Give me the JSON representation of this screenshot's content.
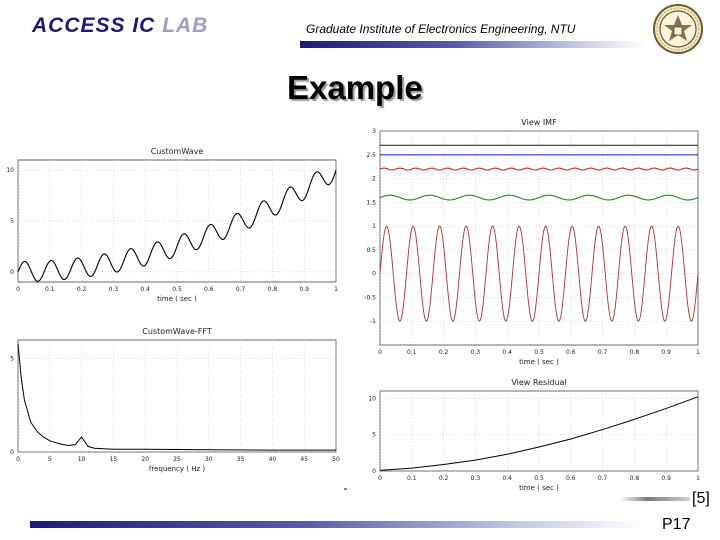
{
  "header": {
    "logo_main": "ACCESS IC ",
    "logo_fade": "LAB",
    "institute": "Graduate Institute of Electronics Engineering, NTU",
    "seal_icon": "ntu-seal-icon"
  },
  "slide": {
    "title": "Example",
    "reference": "[5]",
    "page": "P17"
  },
  "chart_data": [
    {
      "type": "line",
      "title": "CustomWave",
      "xlabel": "time ( sec )",
      "ylabel": "",
      "xlim": [
        0,
        1
      ],
      "ylim": [
        -1,
        11
      ],
      "x_ticks": [
        "0",
        "0.1",
        "0.2",
        "0.3",
        "0.4",
        "0.5",
        "0.6",
        "0.7",
        "0.8",
        "0.9",
        "1"
      ],
      "y_ticks": [
        "0",
        "5",
        "10"
      ],
      "grid": true,
      "series": [
        {
          "description": "x(t)=10t^2 + sin(2*pi*12t)",
          "points_x": [
            0,
            0.1,
            0.2,
            0.3,
            0.4,
            0.5,
            0.6,
            0.7,
            0.8,
            0.9,
            1.0
          ],
          "trend": [
            0,
            0.1,
            0.4,
            0.9,
            1.6,
            2.5,
            3.6,
            4.9,
            6.4,
            8.1,
            10.0
          ],
          "oscillation_freq_hz": 12,
          "oscillation_amp": 1
        }
      ],
      "color": "#000000"
    },
    {
      "type": "line",
      "title": "CustomWave-FFT",
      "xlabel": "frequency ( Hz )",
      "ylabel": "",
      "xlim": [
        0,
        50
      ],
      "ylim": [
        0,
        6
      ],
      "x_ticks": [
        "0",
        "5",
        "10",
        "15",
        "20",
        "25",
        "30",
        "35",
        "40",
        "45",
        "50"
      ],
      "y_ticks": [
        "0",
        "5"
      ],
      "grid": true,
      "series": [
        {
          "x": [
            0,
            0.5,
            1,
            2,
            3,
            4,
            5,
            6,
            7,
            8,
            9,
            10,
            11,
            12,
            15,
            20,
            30,
            40,
            50
          ],
          "y": [
            5.8,
            4.0,
            2.8,
            1.6,
            1.1,
            0.8,
            0.6,
            0.5,
            0.4,
            0.35,
            0.4,
            0.8,
            0.3,
            0.2,
            0.15,
            0.15,
            0.12,
            0.1,
            0.1
          ]
        }
      ],
      "color": "#000000"
    },
    {
      "type": "line",
      "title": "View IMF",
      "xlabel": "time ( sec )",
      "ylabel": "",
      "xlim": [
        0,
        1
      ],
      "ylim": [
        -1.5,
        3
      ],
      "x_ticks": [
        "0",
        "0.1",
        "0.2",
        "0.3",
        "0.4",
        "0.5",
        "0.6",
        "0.7",
        "0.8",
        "0.9",
        "1"
      ],
      "y_ticks": [
        "-1",
        "-0.5",
        "0",
        "0.5",
        "1",
        "1.5",
        "2",
        "2.5",
        "3"
      ],
      "grid": true,
      "series": [
        {
          "offset": 2.7,
          "amplitude": 0,
          "freq_hz": 0,
          "color": "#333333"
        },
        {
          "offset": 2.5,
          "amplitude": 0,
          "freq_hz": 0,
          "color": "#1f3fbf"
        },
        {
          "offset": 2.2,
          "amplitude": 0.02,
          "freq_hz": 20,
          "color": "#cc2222"
        },
        {
          "offset": 1.6,
          "amplitude": 0.05,
          "freq_hz": 8,
          "color": "#228822"
        },
        {
          "offset": 0,
          "amplitude": 1,
          "freq_hz": 12,
          "color": "#aa3333"
        }
      ]
    },
    {
      "type": "line",
      "title": "View Residual",
      "xlabel": "time ( sec )",
      "ylabel": "",
      "xlim": [
        0,
        1
      ],
      "ylim": [
        0,
        11
      ],
      "x_ticks": [
        "0",
        "0.1",
        "0.2",
        "0.3",
        "0.4",
        "0.5",
        "0.6",
        "0.7",
        "0.8",
        "0.9",
        "1"
      ],
      "y_ticks": [
        "0",
        "5",
        "10"
      ],
      "grid": true,
      "series": [
        {
          "x": [
            0,
            0.1,
            0.2,
            0.3,
            0.4,
            0.5,
            0.6,
            0.7,
            0.8,
            0.9,
            1.0
          ],
          "y": [
            0.1,
            0.4,
            0.9,
            1.5,
            2.3,
            3.3,
            4.4,
            5.7,
            7.1,
            8.6,
            10.2
          ]
        }
      ],
      "color": "#000000"
    }
  ]
}
